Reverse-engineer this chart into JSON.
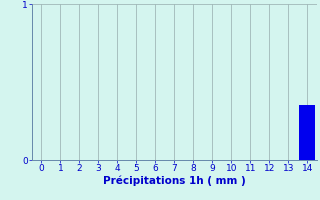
{
  "hours": [
    0,
    1,
    2,
    3,
    4,
    5,
    6,
    7,
    8,
    9,
    10,
    11,
    12,
    13,
    14
  ],
  "values": [
    0,
    0,
    0,
    0,
    0,
    0,
    0,
    0,
    0,
    0,
    0,
    0,
    0,
    0,
    0.35
  ],
  "bar_color": "#0000ee",
  "background_color": "#d4f5ef",
  "grid_color": "#a0b8b8",
  "axis_color": "#6688aa",
  "text_color": "#0000cc",
  "xlabel": "Précipitations 1h ( mm )",
  "ylim": [
    0,
    1
  ],
  "xlim": [
    -0.5,
    14.5
  ],
  "yticks": [
    0,
    1
  ],
  "xticks": [
    0,
    1,
    2,
    3,
    4,
    5,
    6,
    7,
    8,
    9,
    10,
    11,
    12,
    13,
    14
  ],
  "bar_width": 0.85,
  "xlabel_fontsize": 7.5,
  "tick_fontsize": 6.5
}
